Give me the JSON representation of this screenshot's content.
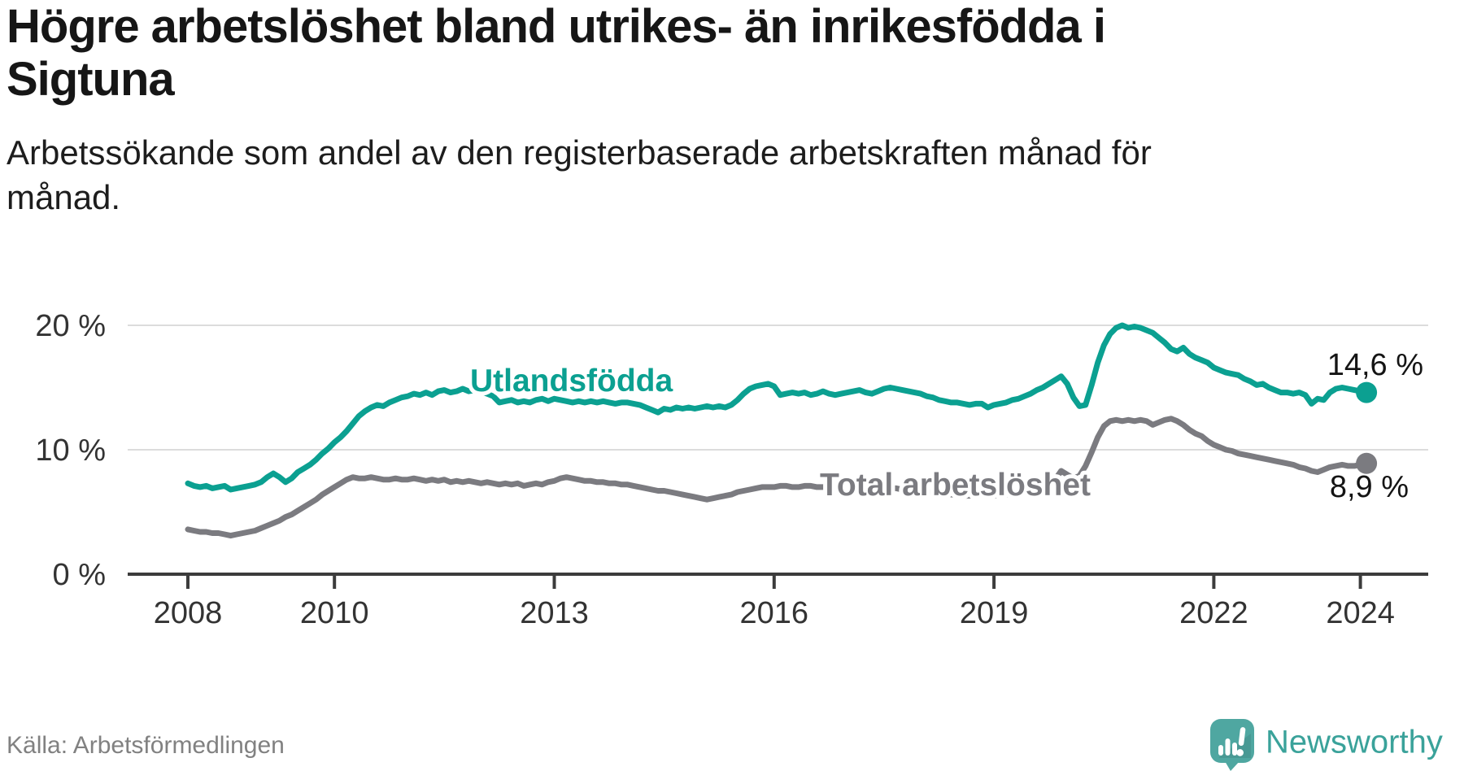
{
  "header": {
    "title": "Högre arbetslöshet bland utrikes- än inrikesfödda i Sigtuna",
    "title_line1": "Högre arbetslöshet bland utrikes- än inrikesfödda i",
    "title_line2": "Sigtuna",
    "subtitle_line1": "Arbetssökande som andel av den registerbaserade arbetskraften månad för",
    "subtitle_line2": "månad."
  },
  "footer": {
    "source": "Källa: Arbetsförmedlingen",
    "brand": "Newsworthy"
  },
  "colors": {
    "accent_teal": "#0ba091",
    "series_gray": "#7b7b80",
    "grid": "#dcdcdc",
    "axis": "#3c3c3c",
    "axis_text": "#333333",
    "logo_bubble": "#4fa7a1",
    "logo_text": "#3aa29a"
  },
  "chart_data": {
    "type": "line",
    "title": "Högre arbetslöshet bland utrikes- än inrikesfödda i Sigtuna",
    "subtitle": "Arbetssökande som andel av den registerbaserade arbetskraften månad för månad.",
    "x_axis": {
      "unit": "year",
      "range": [
        2008.0,
        2024.17
      ],
      "ticks": [
        {
          "value": 2008,
          "label": "2008"
        },
        {
          "value": 2010,
          "label": "2010"
        },
        {
          "value": 2013,
          "label": "2013"
        },
        {
          "value": 2016,
          "label": "2016"
        },
        {
          "value": 2019,
          "label": "2019"
        },
        {
          "value": 2022,
          "label": "2022"
        },
        {
          "value": 2024,
          "label": "2024"
        }
      ]
    },
    "y_axis": {
      "unit": "%",
      "range": [
        0,
        21
      ],
      "ticks": [
        {
          "value": 0,
          "label": "0 %"
        },
        {
          "value": 10,
          "label": "10 %"
        },
        {
          "value": 20,
          "label": "20 %"
        }
      ],
      "grid": true
    },
    "legend_position": "inline-labels",
    "series": [
      {
        "name": "Utlandsfödda",
        "color": "#0ba091",
        "end_label": "14,6 %",
        "end_value": 14.6,
        "start_year": 2008,
        "points_per_year": 12,
        "values": [
          7.3,
          7.1,
          7.0,
          7.1,
          6.9,
          7.0,
          7.1,
          6.8,
          6.9,
          7.0,
          7.1,
          7.2,
          7.4,
          7.8,
          8.1,
          7.8,
          7.4,
          7.7,
          8.2,
          8.5,
          8.8,
          9.2,
          9.7,
          10.1,
          10.6,
          11.0,
          11.5,
          12.1,
          12.7,
          13.1,
          13.4,
          13.6,
          13.5,
          13.8,
          14.0,
          14.2,
          14.3,
          14.5,
          14.4,
          14.6,
          14.4,
          14.7,
          14.8,
          14.6,
          14.7,
          14.9,
          14.7,
          14.8,
          14.7,
          14.5,
          14.3,
          13.8,
          13.9,
          14.0,
          13.8,
          13.9,
          13.8,
          14.0,
          14.1,
          13.9,
          14.1,
          14.0,
          13.9,
          13.8,
          13.9,
          13.8,
          13.9,
          13.8,
          13.9,
          13.8,
          13.7,
          13.8,
          13.8,
          13.7,
          13.6,
          13.4,
          13.2,
          13.0,
          13.3,
          13.2,
          13.4,
          13.3,
          13.4,
          13.3,
          13.4,
          13.5,
          13.4,
          13.5,
          13.4,
          13.6,
          14.0,
          14.5,
          14.9,
          15.1,
          15.2,
          15.3,
          15.1,
          14.4,
          14.5,
          14.6,
          14.5,
          14.6,
          14.4,
          14.5,
          14.7,
          14.5,
          14.4,
          14.5,
          14.6,
          14.7,
          14.8,
          14.6,
          14.5,
          14.7,
          14.9,
          15.0,
          14.9,
          14.8,
          14.7,
          14.6,
          14.5,
          14.3,
          14.2,
          14.0,
          13.9,
          13.8,
          13.8,
          13.7,
          13.6,
          13.7,
          13.7,
          13.4,
          13.6,
          13.7,
          13.8,
          14.0,
          14.1,
          14.3,
          14.5,
          14.8,
          15.0,
          15.3,
          15.6,
          15.9,
          15.3,
          14.2,
          13.5,
          13.6,
          15.2,
          17.0,
          18.4,
          19.3,
          19.8,
          20.0,
          19.8,
          19.9,
          19.8,
          19.6,
          19.4,
          19.0,
          18.6,
          18.1,
          17.9,
          18.2,
          17.7,
          17.4,
          17.2,
          17.0,
          16.6,
          16.4,
          16.2,
          16.1,
          16.0,
          15.7,
          15.5,
          15.2,
          15.3,
          15.0,
          14.8,
          14.6,
          14.6,
          14.5,
          14.6,
          14.4,
          13.7,
          14.1,
          14.0,
          14.6,
          14.9,
          15.0,
          14.9,
          14.8,
          14.7,
          14.6
        ]
      },
      {
        "name": "Total arbetslöshet",
        "color": "#7b7b80",
        "end_label": "8,9 %",
        "end_value": 8.9,
        "start_year": 2008,
        "points_per_year": 12,
        "values": [
          3.6,
          3.5,
          3.4,
          3.4,
          3.3,
          3.3,
          3.2,
          3.1,
          3.2,
          3.3,
          3.4,
          3.5,
          3.7,
          3.9,
          4.1,
          4.3,
          4.6,
          4.8,
          5.1,
          5.4,
          5.7,
          6.0,
          6.4,
          6.7,
          7.0,
          7.3,
          7.6,
          7.8,
          7.7,
          7.7,
          7.8,
          7.7,
          7.6,
          7.6,
          7.7,
          7.6,
          7.6,
          7.7,
          7.6,
          7.5,
          7.6,
          7.5,
          7.6,
          7.4,
          7.5,
          7.4,
          7.5,
          7.4,
          7.3,
          7.4,
          7.3,
          7.2,
          7.3,
          7.2,
          7.3,
          7.1,
          7.2,
          7.3,
          7.2,
          7.4,
          7.5,
          7.7,
          7.8,
          7.7,
          7.6,
          7.5,
          7.5,
          7.4,
          7.4,
          7.3,
          7.3,
          7.2,
          7.2,
          7.1,
          7.0,
          6.9,
          6.8,
          6.7,
          6.7,
          6.6,
          6.5,
          6.4,
          6.3,
          6.2,
          6.1,
          6.0,
          6.1,
          6.2,
          6.3,
          6.4,
          6.6,
          6.7,
          6.8,
          6.9,
          7.0,
          7.0,
          7.0,
          7.1,
          7.1,
          7.0,
          7.0,
          7.1,
          7.1,
          7.0,
          7.0,
          7.1,
          7.1,
          7.0,
          7.0,
          7.1,
          7.1,
          7.0,
          6.9,
          7.0,
          7.0,
          6.9,
          6.9,
          6.8,
          6.8,
          6.7,
          6.7,
          6.6,
          6.6,
          6.5,
          6.5,
          6.4,
          6.4,
          6.3,
          6.3,
          6.4,
          6.4,
          6.3,
          6.3,
          6.4,
          6.4,
          6.5,
          6.5,
          6.6,
          6.7,
          6.8,
          6.9,
          7.1,
          7.6,
          8.3,
          8.0,
          7.7,
          7.9,
          8.7,
          9.8,
          11.0,
          11.9,
          12.3,
          12.4,
          12.3,
          12.4,
          12.3,
          12.4,
          12.3,
          12.0,
          12.2,
          12.4,
          12.5,
          12.3,
          12.0,
          11.6,
          11.3,
          11.1,
          10.7,
          10.4,
          10.2,
          10.0,
          9.9,
          9.7,
          9.6,
          9.5,
          9.4,
          9.3,
          9.2,
          9.1,
          9.0,
          8.9,
          8.8,
          8.6,
          8.5,
          8.3,
          8.2,
          8.4,
          8.6,
          8.7,
          8.8,
          8.7,
          8.7,
          8.8,
          8.9
        ]
      }
    ]
  }
}
